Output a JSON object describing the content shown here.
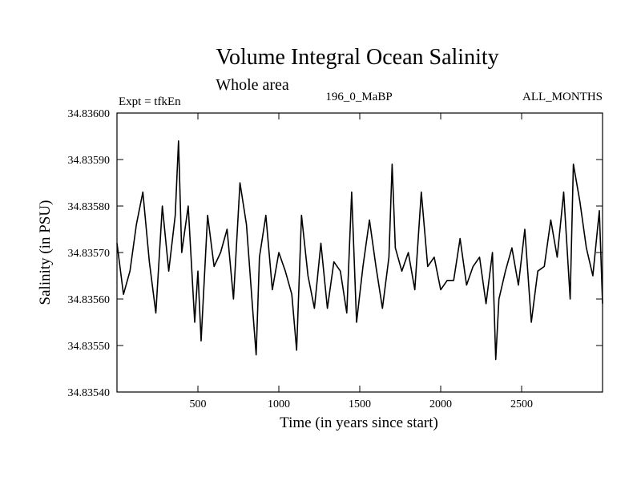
{
  "chart_data": {
    "type": "line",
    "title": "Volume Integral Ocean Salinity",
    "subtitle": "Whole area",
    "annotations": {
      "left": "Expt = tfkEn",
      "center": "196_0_MaBP",
      "right": "ALL_MONTHS"
    },
    "xlabel": "Time (in years since start)",
    "ylabel": "Salinity (in PSU)",
    "xlim": [
      0,
      3000
    ],
    "ylim": [
      34.8354,
      34.836
    ],
    "xticks": [
      500,
      1000,
      1500,
      2000,
      2500
    ],
    "xtick_labels": [
      "500",
      "1000",
      "1500",
      "2000",
      "2500"
    ],
    "yticks": [
      34.8354,
      34.8355,
      34.8356,
      34.8357,
      34.8358,
      34.8359,
      34.836
    ],
    "ytick_labels": [
      "34.83540",
      "34.83550",
      "34.83560",
      "34.83570",
      "34.83580",
      "34.83590",
      "34.83600"
    ],
    "grid": false,
    "series": [
      {
        "color": "#000000",
        "x": [
          0,
          40,
          80,
          120,
          160,
          200,
          240,
          280,
          320,
          360,
          380,
          400,
          440,
          480,
          500,
          520,
          560,
          600,
          640,
          680,
          720,
          760,
          800,
          840,
          860,
          880,
          920,
          960,
          1000,
          1040,
          1080,
          1110,
          1140,
          1180,
          1220,
          1260,
          1300,
          1340,
          1380,
          1420,
          1450,
          1480,
          1520,
          1560,
          1600,
          1640,
          1680,
          1700,
          1720,
          1760,
          1800,
          1840,
          1880,
          1920,
          1960,
          2000,
          2040,
          2080,
          2120,
          2160,
          2200,
          2240,
          2280,
          2320,
          2340,
          2360,
          2400,
          2440,
          2480,
          2520,
          2560,
          2600,
          2640,
          2680,
          2720,
          2760,
          2800,
          2820,
          2860,
          2900,
          2940,
          2980,
          3000
        ],
        "y": [
          34.83572,
          34.83561,
          34.83566,
          34.83576,
          34.83583,
          34.83568,
          34.83557,
          34.8358,
          34.83566,
          34.83578,
          34.83594,
          34.8357,
          34.8358,
          34.83555,
          34.83566,
          34.83551,
          34.83578,
          34.83567,
          34.8357,
          34.83575,
          34.8356,
          34.83585,
          34.83576,
          34.83557,
          34.83548,
          34.83569,
          34.83578,
          34.83562,
          34.8357,
          34.83566,
          34.83561,
          34.83549,
          34.83578,
          34.83565,
          34.83558,
          34.83572,
          34.83558,
          34.83568,
          34.83566,
          34.83557,
          34.83583,
          34.83555,
          34.83567,
          34.83577,
          34.83567,
          34.83558,
          34.83569,
          34.83589,
          34.83571,
          34.83566,
          34.8357,
          34.83562,
          34.83583,
          34.83567,
          34.83569,
          34.83562,
          34.83564,
          34.83564,
          34.83573,
          34.83563,
          34.83567,
          34.83569,
          34.83559,
          34.8357,
          34.83547,
          34.8356,
          34.83566,
          34.83571,
          34.83563,
          34.83575,
          34.83555,
          34.83566,
          34.83567,
          34.83577,
          34.83569,
          34.83583,
          34.8356,
          34.83589,
          34.83581,
          34.83571,
          34.83565,
          34.83579,
          34.83559
        ]
      }
    ]
  }
}
